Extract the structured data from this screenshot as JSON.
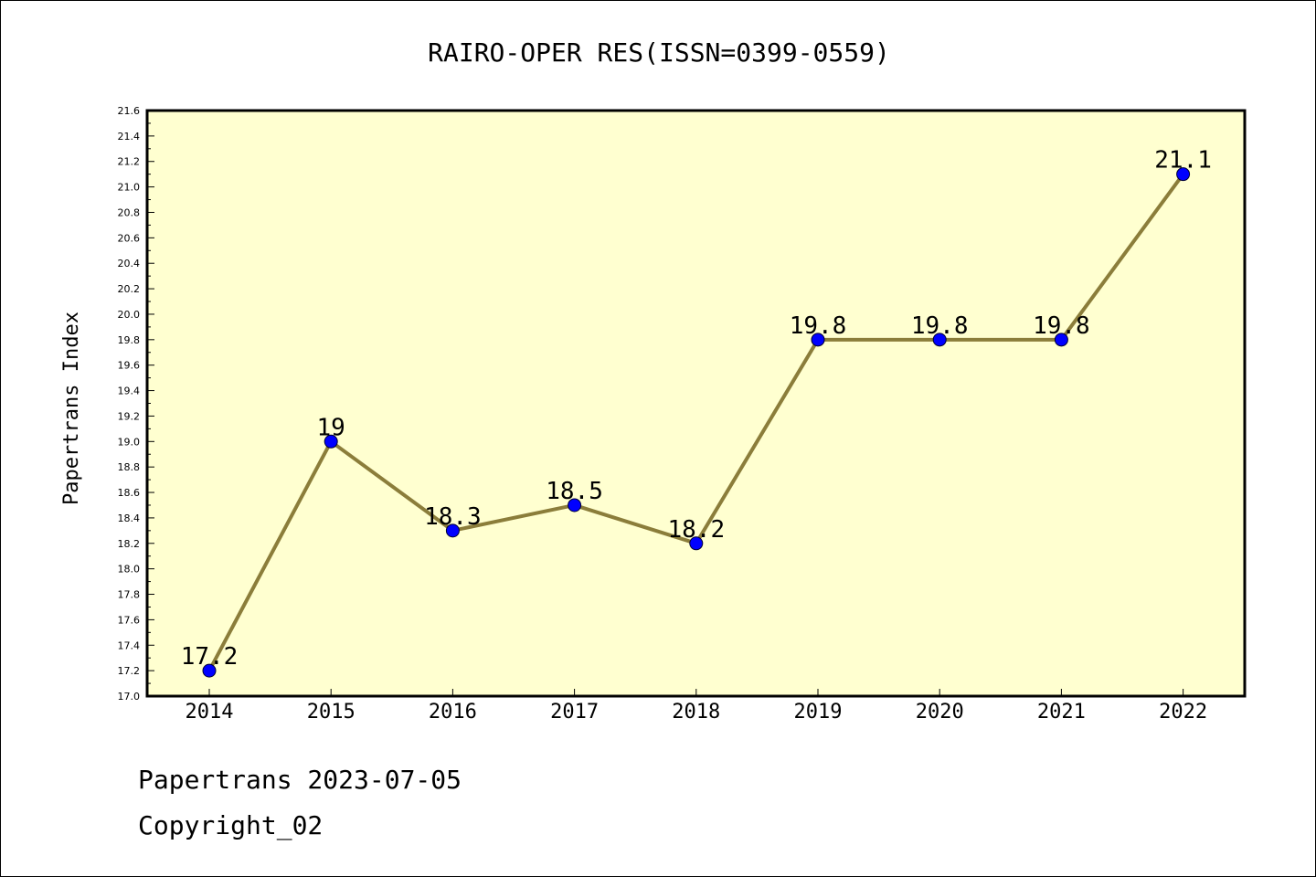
{
  "chart_data": {
    "type": "line",
    "title": "RAIRO-OPER RES(ISSN=0399-0559)",
    "xlabel": "",
    "ylabel": "Papertrans Index",
    "categories": [
      "2014",
      "2015",
      "2016",
      "2017",
      "2018",
      "2019",
      "2020",
      "2021",
      "2022"
    ],
    "series": [
      {
        "values": [
          17.2,
          19.0,
          18.3,
          18.5,
          18.2,
          19.8,
          19.8,
          19.8,
          21.1
        ],
        "point_labels": [
          "17.2",
          "19",
          "18.3",
          "18.5",
          "18.2",
          "19.8",
          "19.8",
          "19.8",
          "21.1"
        ],
        "line_color": "#8b7d3a",
        "marker_color": "#0000ff"
      }
    ],
    "ylim": [
      17.0,
      21.6
    ],
    "ytick_step": 0.2,
    "ytick_labels": [
      "17.0",
      "17.2",
      "17.4",
      "17.6",
      "17.8",
      "18.0",
      "18.2",
      "18.4",
      "18.6",
      "18.8",
      "19.0",
      "19.2",
      "19.4",
      "19.6",
      "19.8",
      "20.0",
      "20.2",
      "20.4",
      "20.6",
      "20.8",
      "21.0",
      "21.2",
      "21.4",
      "21.6"
    ],
    "plot_background": "#ffffd0",
    "grid": false,
    "legend": "none"
  },
  "footer": {
    "line1": "Papertrans 2023-07-05",
    "line2": "Copyright_02"
  }
}
